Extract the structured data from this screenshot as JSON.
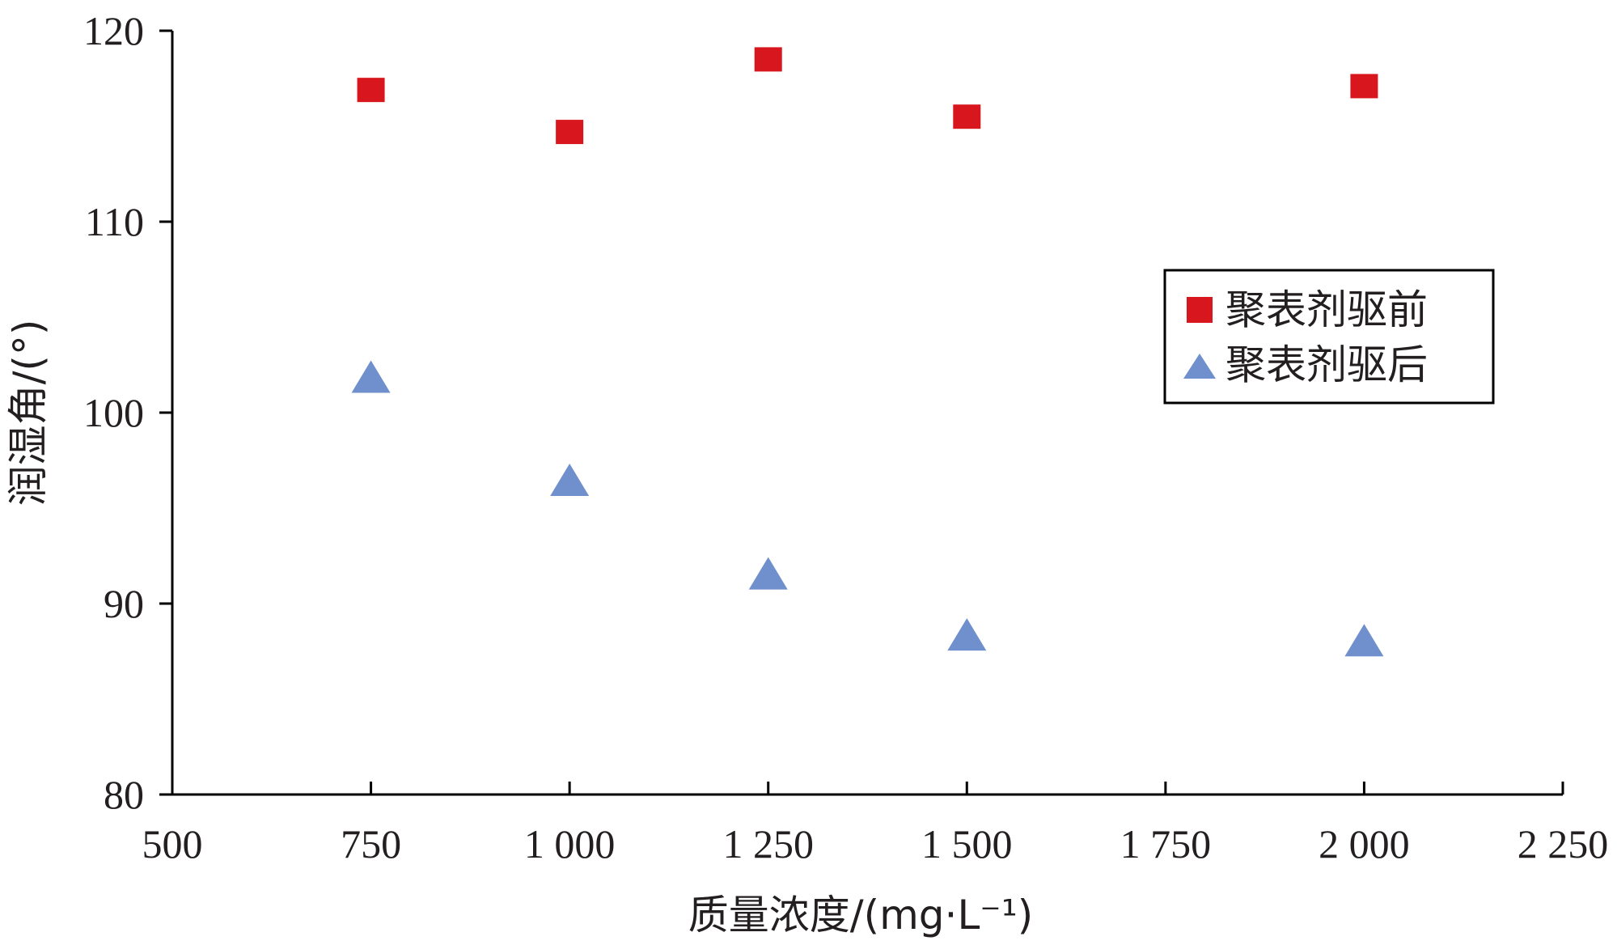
{
  "chart_data": {
    "type": "scatter",
    "xlabel": "质量浓度/(mg·L⁻¹)",
    "ylabel": "润湿角/(°)",
    "xlim": [
      500,
      2250
    ],
    "ylim": [
      80,
      120
    ],
    "x_ticks": [
      500,
      750,
      1000,
      1250,
      1500,
      1750,
      2000,
      2250
    ],
    "x_tick_labels": [
      "500",
      "750",
      "1 000",
      "1 250",
      "1 500",
      "1 750",
      "2 000",
      "2 250"
    ],
    "y_ticks": [
      80,
      90,
      100,
      110,
      120
    ],
    "y_tick_labels": [
      "80",
      "90",
      "100",
      "110",
      "120"
    ],
    "grid": false,
    "legend_position": "right",
    "series": [
      {
        "name": "聚表剂驱前",
        "marker": "square",
        "color": "#d7161d",
        "points": [
          {
            "x": 750,
            "y": 116.9
          },
          {
            "x": 1000,
            "y": 114.7
          },
          {
            "x": 1250,
            "y": 118.5
          },
          {
            "x": 1500,
            "y": 115.5
          },
          {
            "x": 2000,
            "y": 117.1
          }
        ]
      },
      {
        "name": "聚表剂驱后",
        "marker": "triangle",
        "color": "#6f8fcd",
        "points": [
          {
            "x": 750,
            "y": 101.8
          },
          {
            "x": 1000,
            "y": 96.4
          },
          {
            "x": 1250,
            "y": 91.5
          },
          {
            "x": 1500,
            "y": 88.3
          },
          {
            "x": 2000,
            "y": 88.0
          }
        ]
      }
    ]
  }
}
